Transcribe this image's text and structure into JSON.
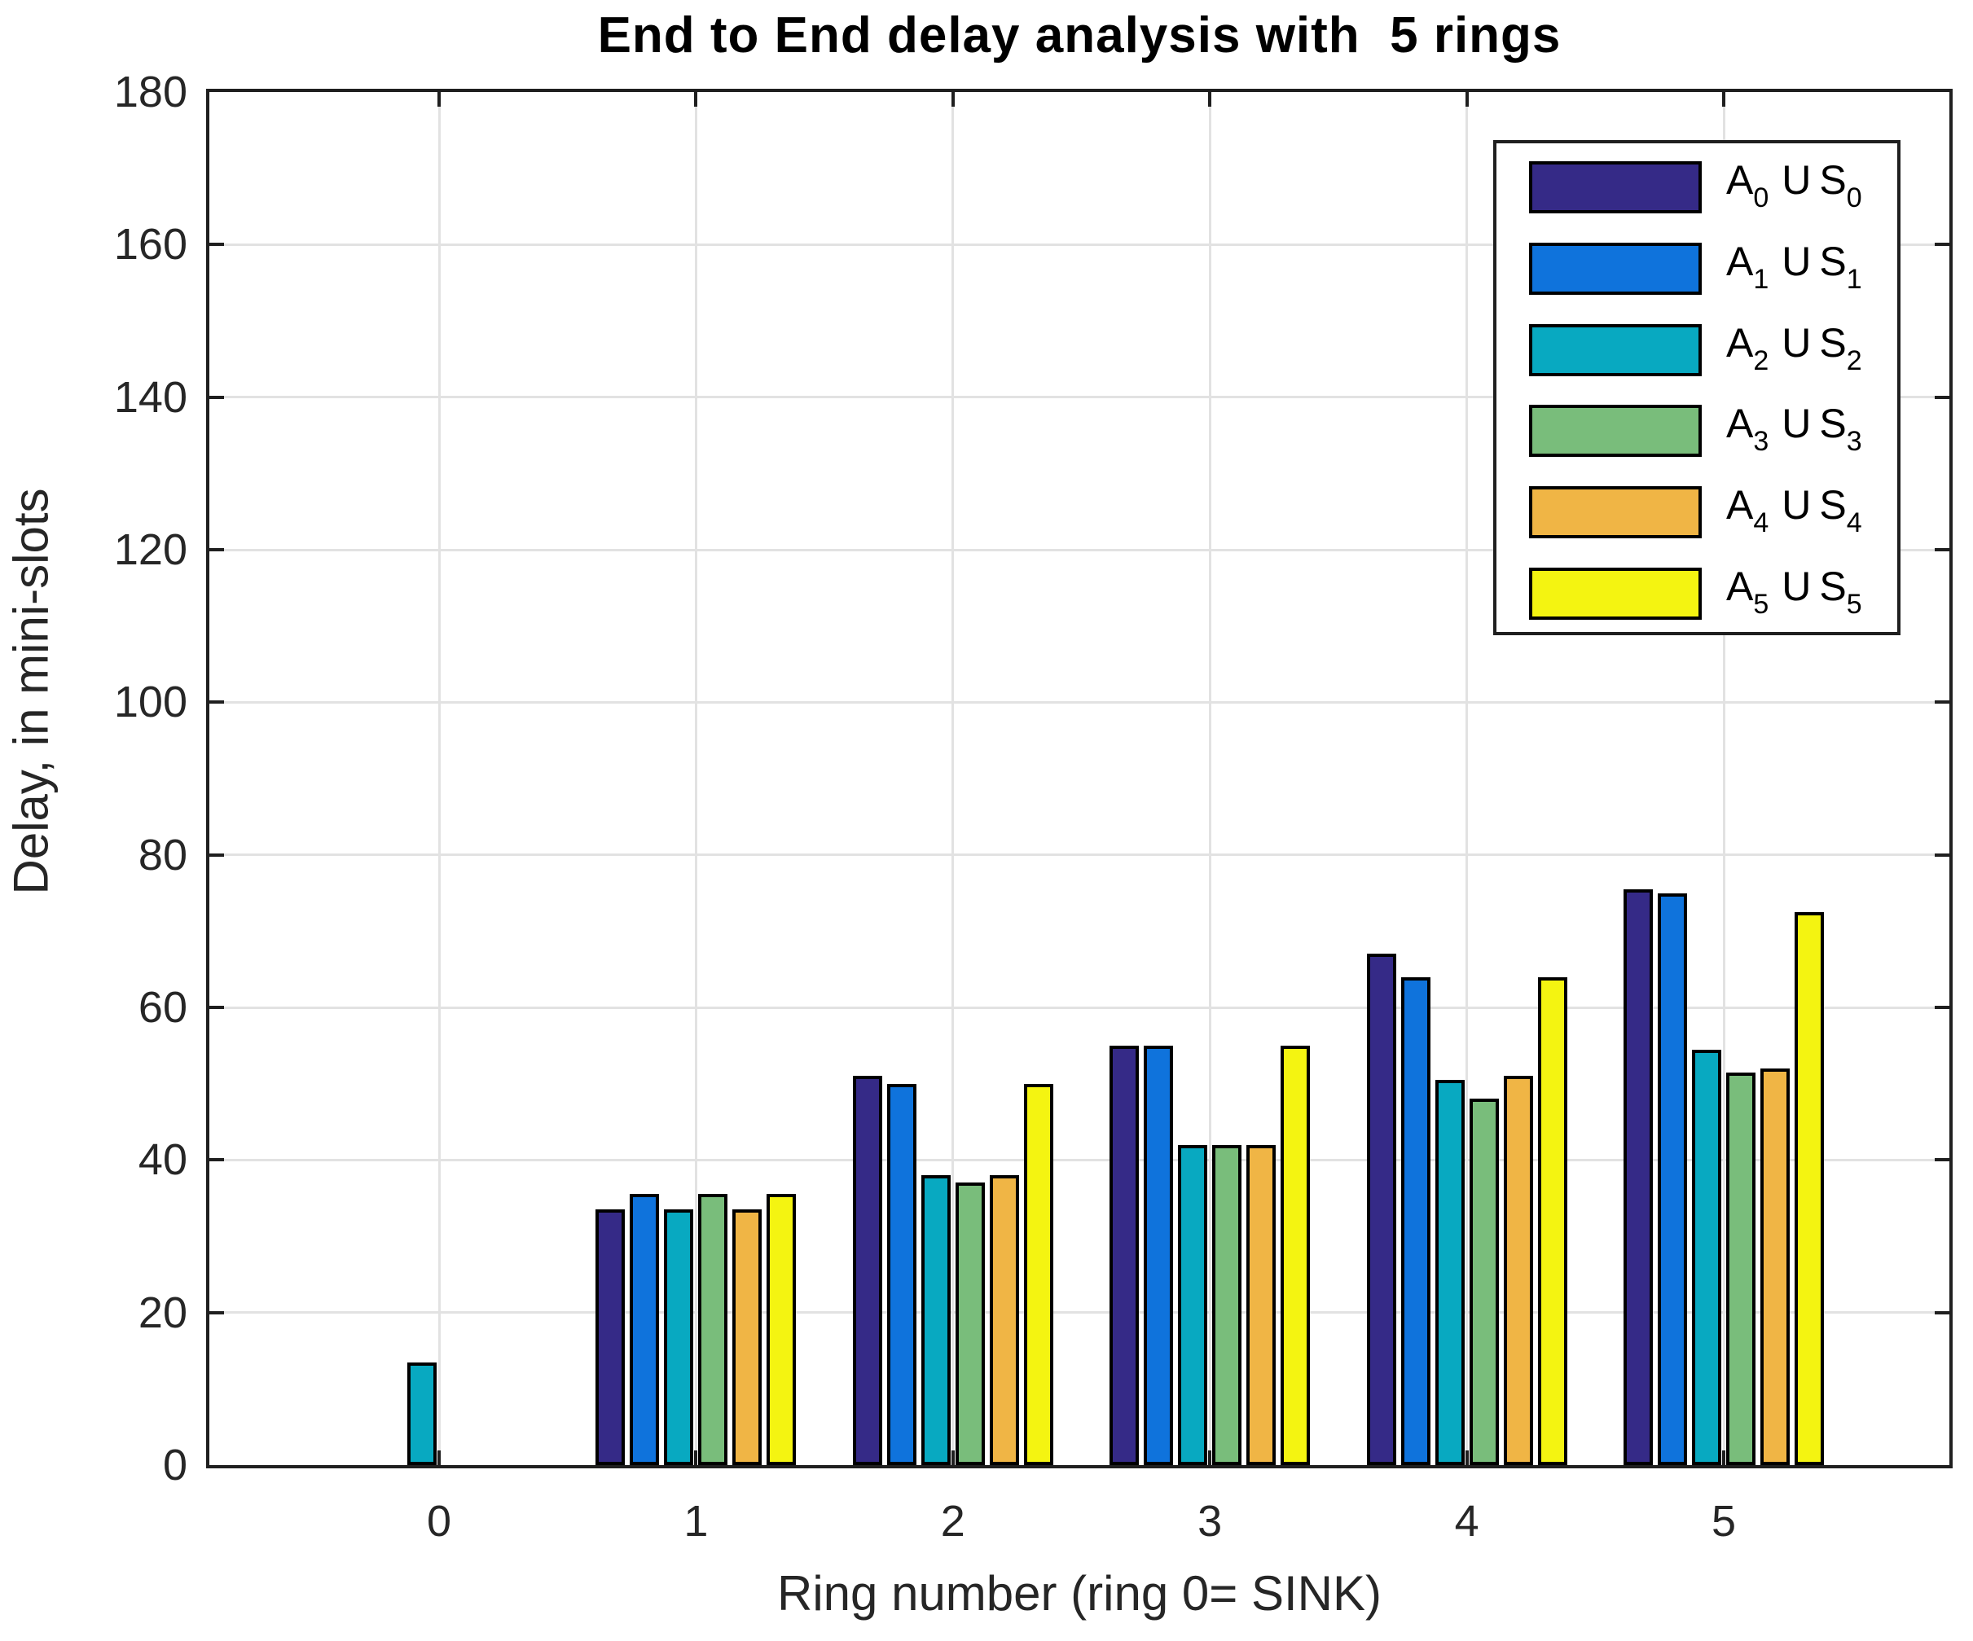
{
  "title": "End to End delay analysis with  5 rings",
  "chart_data": {
    "type": "bar",
    "title": "End to End delay analysis with  5 rings",
    "xlabel": "Ring number (ring 0= SINK)",
    "ylabel": "Delay, in mini-slots",
    "categories": [
      "0",
      "1",
      "2",
      "3",
      "4",
      "5"
    ],
    "series": [
      {
        "name": "A0 U S0",
        "color": "#352A87",
        "values": [
          0,
          33.5,
          51,
          55,
          67,
          75.5
        ]
      },
      {
        "name": "A1 U S1",
        "color": "#0F73DC",
        "values": [
          0,
          35.5,
          50,
          55,
          64,
          75
        ]
      },
      {
        "name": "A2 U S2",
        "color": "#08A9C1",
        "values": [
          13.5,
          33.5,
          38,
          42,
          50.5,
          54.5
        ]
      },
      {
        "name": "A3 U S3",
        "color": "#79BD7B",
        "values": [
          0,
          35.5,
          37,
          42,
          48,
          51.5
        ]
      },
      {
        "name": "A4 U S4",
        "color": "#F0B545",
        "values": [
          0,
          33.5,
          38,
          42,
          51,
          52
        ]
      },
      {
        "name": "A5 U S5",
        "color": "#F4F411",
        "values": [
          0,
          35.5,
          50,
          55,
          64,
          72.5
        ]
      }
    ],
    "legend": {
      "position": "top-right",
      "items": [
        {
          "a": "A",
          "a_sub": "0",
          "mid": "U",
          "s": "S",
          "s_sub": "0"
        },
        {
          "a": "A",
          "a_sub": "1",
          "mid": "U",
          "s": "S",
          "s_sub": "1"
        },
        {
          "a": "A",
          "a_sub": "2",
          "mid": "U",
          "s": "S",
          "s_sub": "2"
        },
        {
          "a": "A",
          "a_sub": "3",
          "mid": "U",
          "s": "S",
          "s_sub": "3"
        },
        {
          "a": "A",
          "a_sub": "4",
          "mid": "U",
          "s": "S",
          "s_sub": "4"
        },
        {
          "a": "A",
          "a_sub": "5",
          "mid": "U",
          "s": "S",
          "s_sub": "5"
        }
      ]
    },
    "ylim": [
      0,
      180
    ],
    "ytick_step": 20,
    "yticks": [
      "0",
      "20",
      "40",
      "60",
      "80",
      "100",
      "120",
      "140",
      "160",
      "180"
    ],
    "grid": true,
    "grid_color": "#E2E2E2",
    "axis_color": "#262626",
    "bar_edge_color": "#000000"
  }
}
